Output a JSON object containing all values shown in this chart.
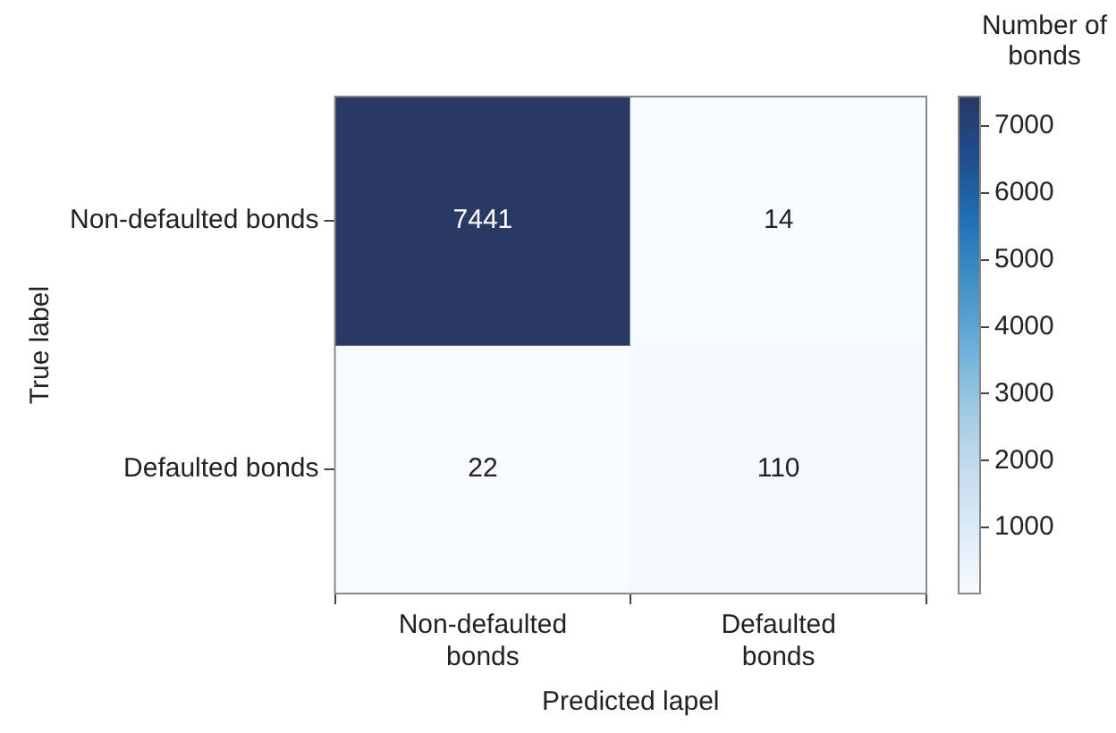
{
  "chart_data": {
    "type": "heatmap",
    "xlabel": "Predicted lapel",
    "ylabel": "True label",
    "clabel": "Number of bonds",
    "categories": [
      "Non-defaulted bonds",
      "Defaulted bonds"
    ],
    "y_categories": [
      "Non-defaulted bonds",
      "Defaulted bonds"
    ],
    "cells": [
      [
        7441,
        14
      ],
      [
        22,
        110
      ]
    ],
    "data_labels": true,
    "clim": [
      14,
      7441
    ],
    "cticks": [
      1000,
      2000,
      3000,
      4000,
      5000,
      6000,
      7000
    ]
  }
}
